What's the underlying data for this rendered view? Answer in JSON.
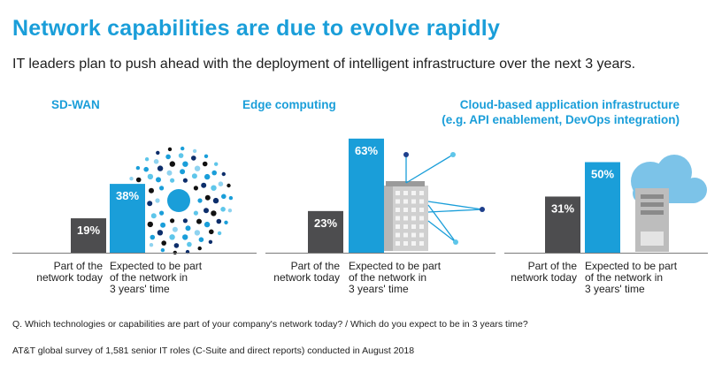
{
  "header": {
    "title": "Network capabilities are due to evolve rapidly",
    "subtitle": "IT leaders plan to push ahead with the deployment of intelligent infrastructure over the next 3 years."
  },
  "colors": {
    "accent": "#1a9ed9",
    "bar_today": "#4d4d4f",
    "bar_future": "#1a9ed9"
  },
  "chart_data": [
    {
      "type": "bar",
      "title": "SD-WAN",
      "categories": [
        "Part of the network today",
        "Expected to be part of the network in 3 years' time"
      ],
      "values": [
        19,
        38
      ],
      "labels": [
        "19%",
        "38%"
      ],
      "ylim": [
        0,
        70
      ],
      "icon": "dot-circle-icon"
    },
    {
      "type": "bar",
      "title": "Edge computing",
      "categories": [
        "Part of the network today",
        "Expected to be part of the network in 3 years' time"
      ],
      "values": [
        23,
        63
      ],
      "labels": [
        "23%",
        "63%"
      ],
      "ylim": [
        0,
        70
      ],
      "icon": "building-network-icon"
    },
    {
      "type": "bar",
      "title": "Cloud-based application infrastructure (e.g. API enablement, DevOps integration)",
      "title_lines": [
        "Cloud-based application infrastructure",
        "(e.g. API enablement, DevOps integration)"
      ],
      "categories": [
        "Part of the network today",
        "Expected to be part of the network in 3 years' time"
      ],
      "values": [
        31,
        50
      ],
      "labels": [
        "31%",
        "50%"
      ],
      "ylim": [
        0,
        70
      ],
      "icon": "cloud-server-icon"
    }
  ],
  "category_lines": {
    "today": [
      "Part of the",
      "network today"
    ],
    "future": [
      "Expected to be part",
      "of the network in",
      "3 years' time"
    ]
  },
  "footer": {
    "question": "Q. Which technologies or capabilities are part of your company's network today? / Which do you expect to be in 3 years time?",
    "source": "AT&T global survey of 1,581 senior IT roles (C-Suite and direct reports) conducted in August 2018"
  }
}
